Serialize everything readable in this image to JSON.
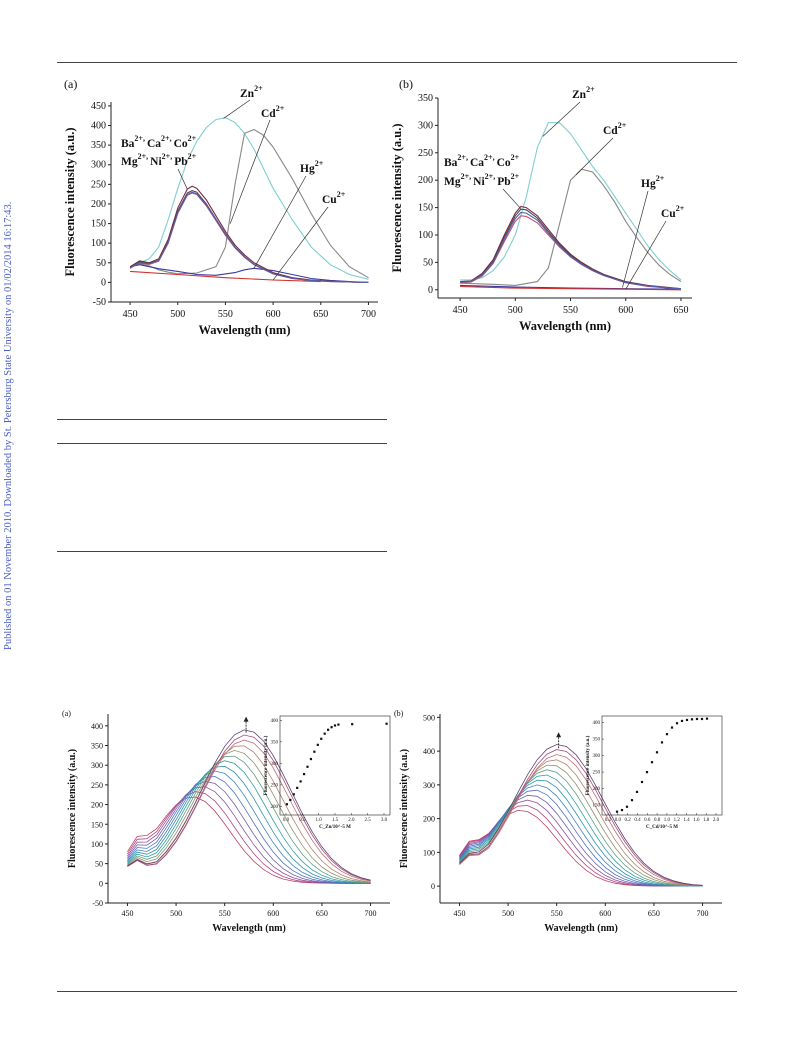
{
  "watermark": "Published on 01 November 2010. Downloaded by St. Petersburg State University on 01/02/2014 16:17:43.",
  "chart_data": [
    {
      "type": "line",
      "panel": "(a)",
      "xlabel": "Wavelength (nm)",
      "ylabel": "Fluorescence intensity (a.u.)",
      "xlim": [
        430,
        710
      ],
      "ylim": [
        -50,
        460
      ],
      "xticks": [
        450,
        500,
        550,
        600,
        650,
        700
      ],
      "yticks": [
        -50,
        0,
        50,
        100,
        150,
        200,
        250,
        300,
        350,
        400,
        450
      ],
      "annotations": [
        {
          "base": "Zn",
          "sup": "2+"
        },
        {
          "base": "Cd",
          "sup": "2+"
        },
        {
          "base": "Hg",
          "sup": "2+"
        },
        {
          "base": "Cu",
          "sup": "2+"
        },
        {
          "line1": [
            [
              "Ba",
              "2+"
            ],
            [
              "Ca",
              "2+"
            ],
            [
              "Co",
              "2+"
            ]
          ],
          "line2": [
            [
              "Mg",
              "2+"
            ],
            [
              "Ni",
              "2+"
            ],
            [
              "Pb",
              "2+"
            ]
          ]
        }
      ],
      "series": [
        {
          "color": "#7fcfcf",
          "x": [
            450,
            460,
            470,
            480,
            490,
            500,
            510,
            520,
            530,
            540,
            550,
            560,
            570,
            580,
            590,
            600,
            620,
            640,
            660,
            680,
            700
          ],
          "y": [
            38,
            50,
            60,
            90,
            160,
            240,
            310,
            360,
            395,
            415,
            420,
            408,
            380,
            340,
            290,
            240,
            160,
            90,
            45,
            20,
            8
          ]
        },
        {
          "color": "#888888",
          "x": [
            450,
            460,
            470,
            480,
            490,
            500,
            520,
            540,
            550,
            560,
            570,
            580,
            590,
            600,
            620,
            640,
            660,
            680,
            700
          ],
          "y": [
            40,
            48,
            42,
            32,
            26,
            22,
            24,
            40,
            90,
            250,
            380,
            390,
            375,
            345,
            265,
            175,
            95,
            40,
            12
          ]
        },
        {
          "color": "#3a3aa0",
          "x": [
            450,
            460,
            480,
            500,
            520,
            540,
            560,
            570,
            580,
            600,
            620,
            640,
            660,
            680,
            700
          ],
          "y": [
            40,
            45,
            35,
            28,
            20,
            18,
            25,
            32,
            36,
            30,
            20,
            10,
            5,
            2,
            0
          ]
        },
        {
          "color": "#d03030",
          "x": [
            450,
            500,
            550,
            600,
            650
          ],
          "y": [
            28,
            20,
            12,
            6,
            2
          ]
        },
        {
          "color": "#7a2a40",
          "x": [
            450,
            460,
            470,
            480,
            490,
            500,
            510,
            515,
            520,
            530,
            540,
            550,
            560,
            570,
            580,
            600,
            620,
            640,
            660,
            680,
            700
          ],
          "y": [
            40,
            55,
            50,
            60,
            110,
            190,
            238,
            245,
            240,
            210,
            170,
            130,
            95,
            70,
            50,
            25,
            12,
            6,
            3,
            1,
            0
          ]
        },
        {
          "color": "#4a4a4a",
          "x": [
            450,
            460,
            470,
            480,
            490,
            500,
            510,
            515,
            520,
            530,
            540,
            550,
            560,
            570,
            580,
            600,
            620,
            640,
            660,
            680,
            700
          ],
          "y": [
            38,
            52,
            48,
            56,
            104,
            182,
            228,
            234,
            230,
            200,
            162,
            124,
            90,
            66,
            46,
            23,
            11,
            5,
            3,
            1,
            0
          ]
        },
        {
          "color": "#c05070",
          "x": [
            450,
            460,
            470,
            480,
            490,
            500,
            510,
            515,
            520,
            530,
            540,
            550,
            560,
            570,
            580,
            600,
            620,
            640,
            660,
            680,
            700
          ],
          "y": [
            36,
            50,
            46,
            54,
            100,
            176,
            222,
            228,
            224,
            195,
            158,
            120,
            88,
            64,
            45,
            22,
            10,
            5,
            2,
            1,
            0
          ]
        },
        {
          "color": "#5060b0",
          "x": [
            450,
            460,
            470,
            480,
            490,
            500,
            510,
            515,
            520,
            530,
            540,
            550,
            560,
            570,
            580,
            600,
            620,
            640,
            660,
            680,
            700
          ],
          "y": [
            37,
            50,
            47,
            55,
            102,
            178,
            224,
            230,
            226,
            197,
            160,
            122,
            89,
            65,
            45,
            22,
            10,
            5,
            2,
            1,
            0
          ]
        }
      ]
    },
    {
      "type": "line",
      "panel": "(b)",
      "xlabel": "Wavelength (nm)",
      "ylabel": "Fluorescence intensity (a.u.)",
      "xlim": [
        430,
        660
      ],
      "ylim": [
        -15,
        350
      ],
      "xticks": [
        450,
        500,
        550,
        600,
        650
      ],
      "yticks": [
        0,
        50,
        100,
        150,
        200,
        250,
        300,
        350
      ],
      "annotations": [
        {
          "base": "Zn",
          "sup": "2+"
        },
        {
          "base": "Cd",
          "sup": "2+"
        },
        {
          "base": "Hg",
          "sup": "2+"
        },
        {
          "base": "Cu",
          "sup": "2+"
        },
        {
          "line1": [
            [
              "Ba",
              "2+"
            ],
            [
              "Ca",
              "2+"
            ],
            [
              "Co",
              "2+"
            ]
          ],
          "line2": [
            [
              "Mg",
              "2+"
            ],
            [
              "Ni",
              "2+"
            ],
            [
              "Pb",
              "2+"
            ]
          ]
        }
      ],
      "series": [
        {
          "color": "#7fcfcf",
          "x": [
            450,
            460,
            470,
            480,
            490,
            500,
            510,
            520,
            530,
            540,
            550,
            560,
            570,
            580,
            590,
            600,
            610,
            620,
            630,
            640,
            650
          ],
          "y": [
            18,
            18,
            22,
            35,
            60,
            100,
            170,
            260,
            305,
            305,
            285,
            255,
            225,
            200,
            170,
            140,
            110,
            80,
            55,
            35,
            18
          ]
        },
        {
          "color": "#888888",
          "x": [
            450,
            480,
            500,
            520,
            530,
            540,
            550,
            560,
            570,
            580,
            590,
            600,
            610,
            620,
            630,
            640,
            650
          ],
          "y": [
            12,
            10,
            8,
            15,
            40,
            120,
            200,
            220,
            215,
            190,
            160,
            125,
            95,
            68,
            45,
            28,
            15
          ]
        },
        {
          "color": "#3a3aa0",
          "x": [
            450,
            500,
            550,
            600,
            650
          ],
          "y": [
            8,
            5,
            3,
            2,
            1
          ]
        },
        {
          "color": "#d03030",
          "x": [
            450,
            500,
            550,
            600,
            650
          ],
          "y": [
            6,
            3,
            2,
            1,
            0
          ]
        },
        {
          "color": "#7a2a40",
          "x": [
            450,
            460,
            470,
            480,
            490,
            500,
            505,
            510,
            520,
            530,
            540,
            550,
            560,
            570,
            580,
            600,
            620,
            640,
            650
          ],
          "y": [
            15,
            16,
            30,
            55,
            100,
            140,
            152,
            150,
            135,
            110,
            85,
            65,
            50,
            38,
            28,
            15,
            8,
            4,
            2
          ]
        },
        {
          "color": "#4a4a4a",
          "x": [
            450,
            460,
            470,
            480,
            490,
            500,
            505,
            510,
            520,
            530,
            540,
            550,
            560,
            570,
            580,
            600,
            620,
            640,
            650
          ],
          "y": [
            14,
            15,
            28,
            52,
            96,
            135,
            147,
            146,
            131,
            106,
            82,
            63,
            48,
            36,
            27,
            14,
            7,
            3,
            2
          ]
        },
        {
          "color": "#c05070",
          "x": [
            450,
            460,
            470,
            480,
            490,
            500,
            505,
            510,
            520,
            530,
            540,
            550,
            560,
            570,
            580,
            600,
            620,
            640,
            650
          ],
          "y": [
            13,
            14,
            25,
            48,
            88,
            125,
            135,
            134,
            122,
            100,
            78,
            60,
            46,
            35,
            26,
            13,
            6,
            3,
            1
          ]
        },
        {
          "color": "#5060b0",
          "x": [
            450,
            460,
            470,
            480,
            490,
            500,
            505,
            510,
            520,
            530,
            540,
            550,
            560,
            570,
            580,
            600,
            620,
            640,
            650
          ],
          "y": [
            14,
            15,
            27,
            50,
            92,
            130,
            141,
            140,
            127,
            103,
            80,
            61,
            47,
            35,
            26,
            13,
            7,
            3,
            2
          ]
        }
      ]
    },
    {
      "type": "line",
      "panel": "(a)",
      "xlabel": "Wavelength (nm)",
      "ylabel": "Fluorescence intensity (a.u.)",
      "xlim": [
        430,
        720
      ],
      "ylim": [
        -50,
        430
      ],
      "xticks": [
        450,
        500,
        550,
        600,
        650,
        700
      ],
      "yticks": [
        -50,
        0,
        50,
        100,
        150,
        200,
        250,
        300,
        350,
        400
      ],
      "titration": {
        "count": 14,
        "x": [
          450,
          460,
          470,
          480,
          490,
          500,
          510,
          520,
          530,
          540,
          550,
          560,
          570,
          580,
          590,
          600,
          610,
          620,
          630,
          640,
          650,
          660,
          670,
          680,
          690,
          700
        ],
        "start_peak": 517,
        "start_height": 220,
        "end_peak": 572,
        "end_height": 390,
        "arrow_at": 572
      },
      "inset": {
        "xlabel": "C_Zn/10^-5 M",
        "ylabel": "Fluorescence intensity (a.u.)",
        "xticks": [
          "0.0",
          "0.5",
          "1.0",
          "1.5",
          "2.0",
          "2.5",
          "3.0"
        ],
        "yticks": [
          "200",
          "250",
          "300",
          "350",
          "400"
        ],
        "xlim": [
          -0.1,
          3.1
        ],
        "ylim": [
          180,
          410
        ],
        "points": {
          "x": [
            0.1,
            0.2,
            0.3,
            0.4,
            0.5,
            0.6,
            0.7,
            0.8,
            0.9,
            1.0,
            1.1,
            1.2,
            1.3,
            1.4,
            1.5,
            1.6,
            2.0,
            3.0
          ],
          "y": [
            205,
            215,
            228,
            243,
            258,
            275,
            292,
            310,
            327,
            343,
            357,
            369,
            378,
            384,
            388,
            390,
            391,
            392
          ]
        }
      }
    },
    {
      "type": "line",
      "panel": "(b)",
      "xlabel": "Wavelength (nm)",
      "ylabel": "Fluorescence intensity (a.u.)",
      "xlim": [
        430,
        720
      ],
      "ylim": [
        -50,
        510
      ],
      "xticks": [
        450,
        500,
        550,
        600,
        650,
        700
      ],
      "yticks": [
        0,
        100,
        200,
        300,
        400,
        500
      ],
      "titration": {
        "count": 14,
        "x": [
          450,
          460,
          470,
          480,
          490,
          500,
          510,
          520,
          530,
          540,
          550,
          560,
          570,
          580,
          590,
          600,
          610,
          620,
          630,
          640,
          650,
          660,
          670,
          680,
          690,
          700
        ],
        "start_peak": 513,
        "start_height": 225,
        "end_peak": 552,
        "end_height": 420,
        "arrow_at": 552
      },
      "inset": {
        "xlabel": "C_Cd/10^-5 M",
        "ylabel": "Fluorescence intensity (a.u.)",
        "xticks": [
          "0.2",
          "0.0",
          "0.2",
          "0.4",
          "0.6",
          "0.8",
          "1.0",
          "1.2",
          "1.4",
          "1.6",
          "1.8",
          "2.0"
        ],
        "yticks": [
          "150",
          "200",
          "250",
          "300",
          "350",
          "400"
        ],
        "xlim": [
          -0.3,
          2.1
        ],
        "ylim": [
          120,
          420
        ],
        "points": {
          "x": [
            0.0,
            0.1,
            0.2,
            0.3,
            0.4,
            0.5,
            0.6,
            0.7,
            0.8,
            0.9,
            1.0,
            1.1,
            1.2,
            1.3,
            1.4,
            1.5,
            1.6,
            1.7,
            1.8
          ],
          "y": [
            130,
            135,
            145,
            165,
            190,
            220,
            250,
            280,
            310,
            340,
            365,
            385,
            398,
            405,
            408,
            410,
            411,
            411,
            412
          ]
        }
      }
    }
  ]
}
